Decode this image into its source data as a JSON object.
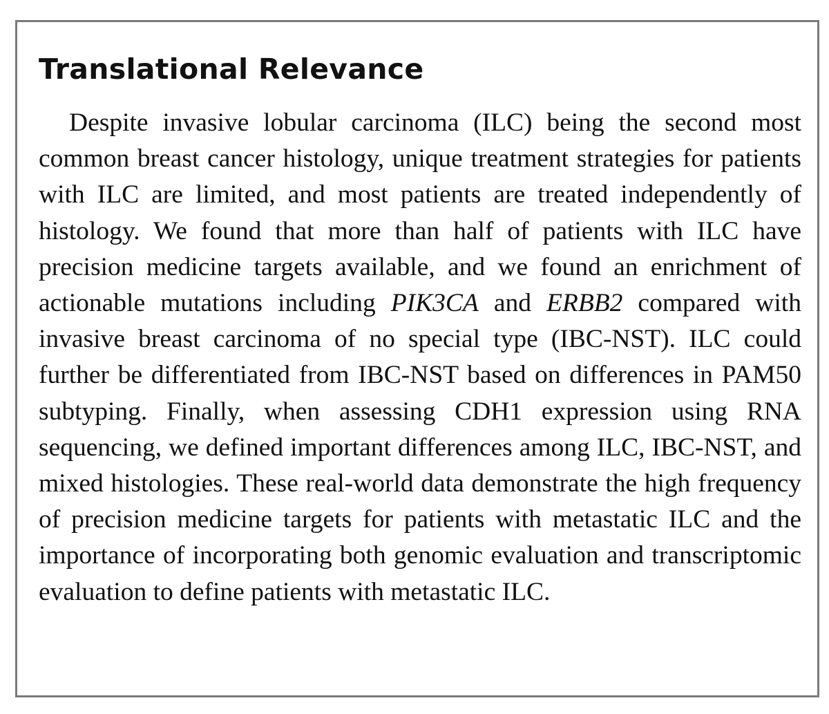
{
  "title": "Translational Relevance",
  "body": [
    "Despite invasive lobular carcinoma (ILC) being the second most common breast cancer histology, unique treatment strategies for patients with ILC are limited, and most patients are treated independently of histology. We found that more than half of patients with ILC have precision medicine targets available, and we found an enrichment of actionable mutations including ",
    "PIK3CA",
    " and ",
    "ERBB2",
    " compared with invasive breast carcinoma of no special type (IBC-NST). ILC could further be differentiated from IBC-NST based on differences in PAM50 subtyping. Finally, when assessing CDH1 expression using RNA sequencing, we defined important differences among ILC, IBC-NST, and mixed histologies. These real-world data demonstrate the high frequency of precision medicine targets for patients with metastatic ILC and the importance of incorporating both genomic evaluation and transcriptomic evaluation to define patients with metastatic ILC."
  ]
}
